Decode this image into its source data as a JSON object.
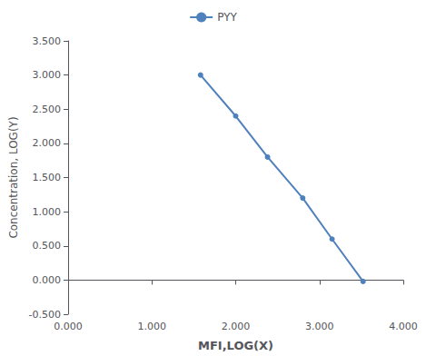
{
  "chart_data": {
    "type": "line",
    "x": [
      1.58,
      2.0,
      2.38,
      2.8,
      3.15,
      3.52
    ],
    "series": [
      {
        "name": "PYY",
        "color": "#4f81bd",
        "marker": "circle",
        "line_style": "solid",
        "values": [
          3.0,
          2.4,
          1.8,
          1.2,
          0.6,
          -0.02
        ]
      }
    ],
    "xlabel": "MFI,LOG(X)",
    "ylabel": "Concentration, LOG(Y)",
    "xlim": [
      0.0,
      4.0
    ],
    "ylim": [
      -0.5,
      3.5
    ],
    "xticks": [
      {
        "value": 0,
        "label": "0.000"
      },
      {
        "value": 1,
        "label": "1.000"
      },
      {
        "value": 2,
        "label": "2.000"
      },
      {
        "value": 3,
        "label": "3.000"
      },
      {
        "value": 4,
        "label": "4.000"
      }
    ],
    "yticks": [
      {
        "value": -0.5,
        "label": "-0.500"
      },
      {
        "value": 0,
        "label": "0.000"
      },
      {
        "value": 0.5,
        "label": "0.500"
      },
      {
        "value": 1,
        "label": "1.000"
      },
      {
        "value": 1.5,
        "label": "1.500"
      },
      {
        "value": 2,
        "label": "2.000"
      },
      {
        "value": 2.5,
        "label": "2.500"
      },
      {
        "value": 3,
        "label": "3.000"
      },
      {
        "value": 3.5,
        "label": "3.500"
      }
    ],
    "grid": false,
    "legend": "top"
  }
}
